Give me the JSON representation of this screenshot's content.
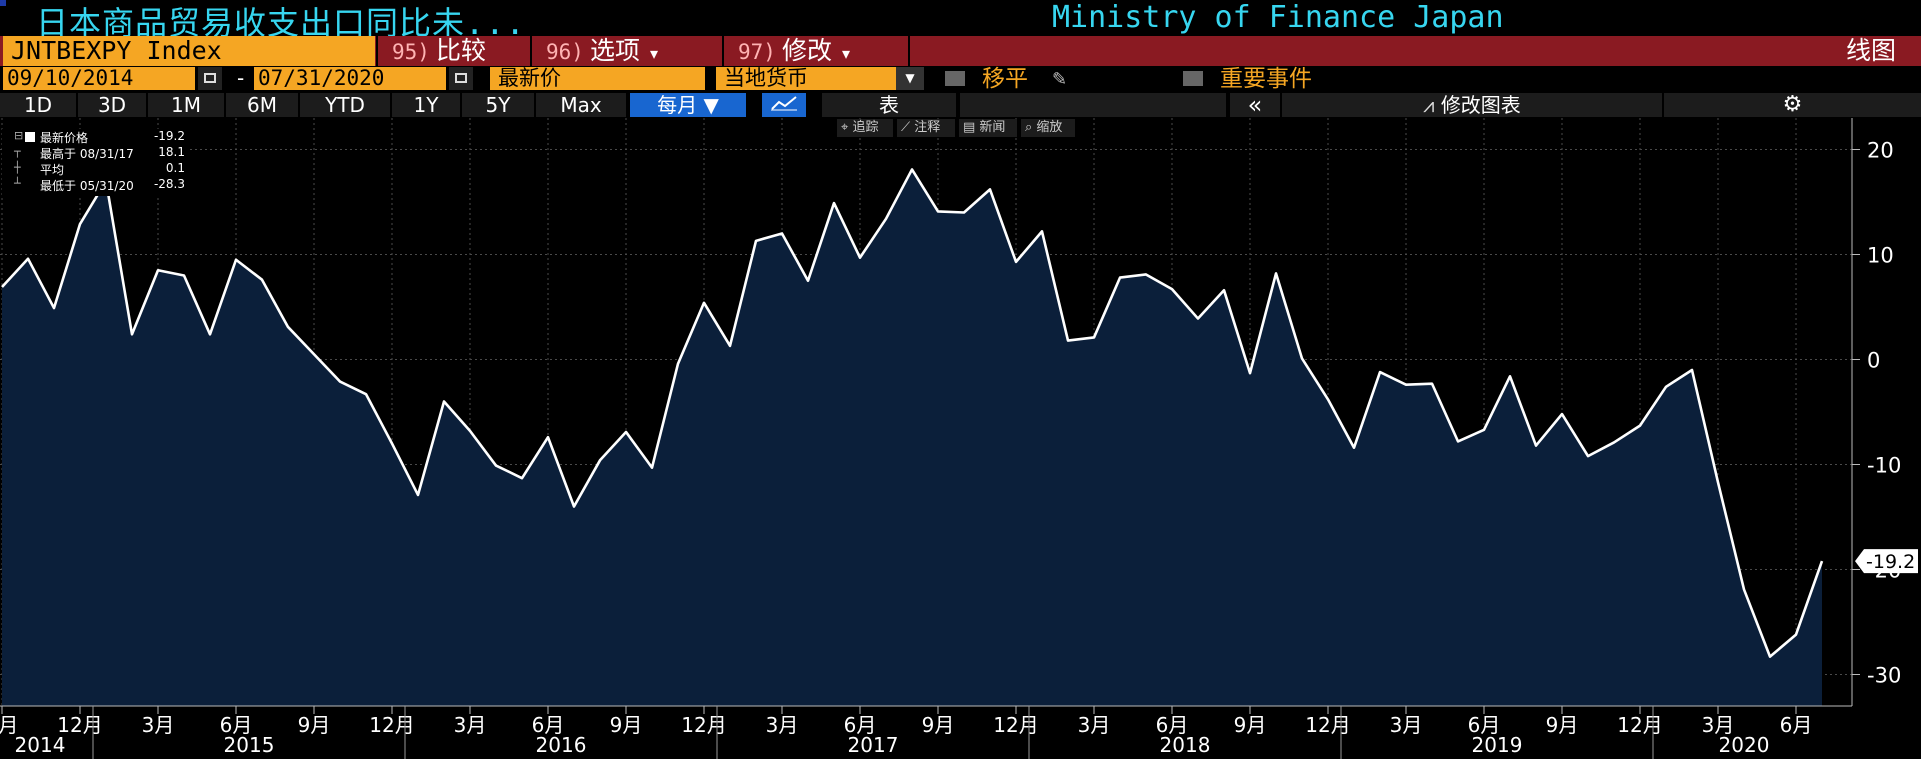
{
  "header": {
    "title": "日本商品贸易收支出口同比未...",
    "source": "Ministry of Finance Japan",
    "ticker": "JNTBEXPY Index",
    "menu": [
      {
        "num": "95)",
        "label": "比较",
        "caret": ""
      },
      {
        "num": "96)",
        "label": "选项",
        "caret": "▾"
      },
      {
        "num": "97)",
        "label": "修改",
        "caret": "▾"
      }
    ],
    "chart_type_label": "线图"
  },
  "controls": {
    "start_date": "09/10/2014",
    "end_date": "07/31/2020",
    "dash": "-",
    "price_field": "最新价",
    "currency_field": "当地货币",
    "smoothing_label": "移平",
    "events_label": "重要事件"
  },
  "toolbar": {
    "ranges": [
      "1D",
      "3D",
      "1M",
      "6M",
      "YTD",
      "1Y",
      "5Y",
      "Max"
    ],
    "frequency": "每月 ▼",
    "table_label": "表",
    "collapse_glyph": "«",
    "edit_chart_label": "修改图表",
    "gear_glyph": "⚙"
  },
  "annotation_tools": [
    "⌖ 追踪",
    "⟋ 注释",
    "▤ 新闻",
    "⌕ 缩放"
  ],
  "legend": {
    "last": {
      "label": "最新价格",
      "value": "-19.2"
    },
    "high": {
      "label": "最高于 08/31/17",
      "value": "18.1"
    },
    "avg": {
      "label": "平均",
      "value": "0.1"
    },
    "low": {
      "label": "最低于 05/31/20",
      "value": "-28.3"
    }
  },
  "chart_data": {
    "type": "area",
    "title": "日本商品贸易收支出口同比未...",
    "ylim": [
      -33,
      23
    ],
    "yticks": [
      20,
      10,
      0,
      -10,
      -20,
      -30
    ],
    "last_value_label": "-19.2",
    "x_month_labels": [
      "12月",
      "3月",
      "6月",
      "9月"
    ],
    "x_year_labels": [
      "2014",
      "2015",
      "2016",
      "2017",
      "2018",
      "2019",
      "2020"
    ],
    "grid": true,
    "colors": {
      "line": "#ffffff",
      "fill": "#0b1f3a",
      "grid": "#4a4a4a"
    },
    "series": [
      {
        "x": [
          "2014-09",
          "2014-10",
          "2014-11",
          "2014-12",
          "2015-01",
          "2015-02",
          "2015-03",
          "2015-04",
          "2015-05",
          "2015-06",
          "2015-07",
          "2015-08",
          "2015-09",
          "2015-10",
          "2015-11",
          "2015-12",
          "2016-01",
          "2016-02",
          "2016-03",
          "2016-04",
          "2016-05",
          "2016-06",
          "2016-07",
          "2016-08",
          "2016-09",
          "2016-10",
          "2016-11",
          "2016-12",
          "2017-01",
          "2017-02",
          "2017-03",
          "2017-04",
          "2017-05",
          "2017-06",
          "2017-07",
          "2017-08",
          "2017-09",
          "2017-10",
          "2017-11",
          "2017-12",
          "2018-01",
          "2018-02",
          "2018-03",
          "2018-04",
          "2018-05",
          "2018-06",
          "2018-07",
          "2018-08",
          "2018-09",
          "2018-10",
          "2018-11",
          "2018-12",
          "2019-01",
          "2019-02",
          "2019-03",
          "2019-04",
          "2019-05",
          "2019-06",
          "2019-07",
          "2019-08",
          "2019-09",
          "2019-10",
          "2019-11",
          "2019-12",
          "2020-01",
          "2020-02",
          "2020-03",
          "2020-04",
          "2020-05",
          "2020-06",
          "2020-07"
        ],
        "values": [
          6.9,
          9.6,
          4.9,
          12.9,
          17.0,
          2.4,
          8.5,
          8.0,
          2.4,
          9.5,
          7.6,
          3.1,
          0.5,
          -2.1,
          -3.3,
          -8.0,
          -12.9,
          -4.0,
          -6.8,
          -10.1,
          -11.3,
          -7.4,
          -14.0,
          -9.6,
          -6.9,
          -10.3,
          -0.4,
          5.4,
          1.3,
          11.3,
          12.0,
          7.5,
          14.9,
          9.7,
          13.4,
          18.1,
          14.1,
          14.0,
          16.2,
          9.3,
          12.2,
          1.8,
          2.1,
          7.8,
          8.1,
          6.7,
          3.9,
          6.6,
          -1.3,
          8.2,
          0.1,
          -3.8,
          -8.4,
          -1.2,
          -2.4,
          -2.3,
          -7.8,
          -6.7,
          -1.6,
          -8.2,
          -5.2,
          -9.2,
          -7.9,
          -6.3,
          -2.6,
          -1.0,
          -11.7,
          -21.9,
          -28.3,
          -26.2,
          -19.2
        ]
      }
    ]
  }
}
